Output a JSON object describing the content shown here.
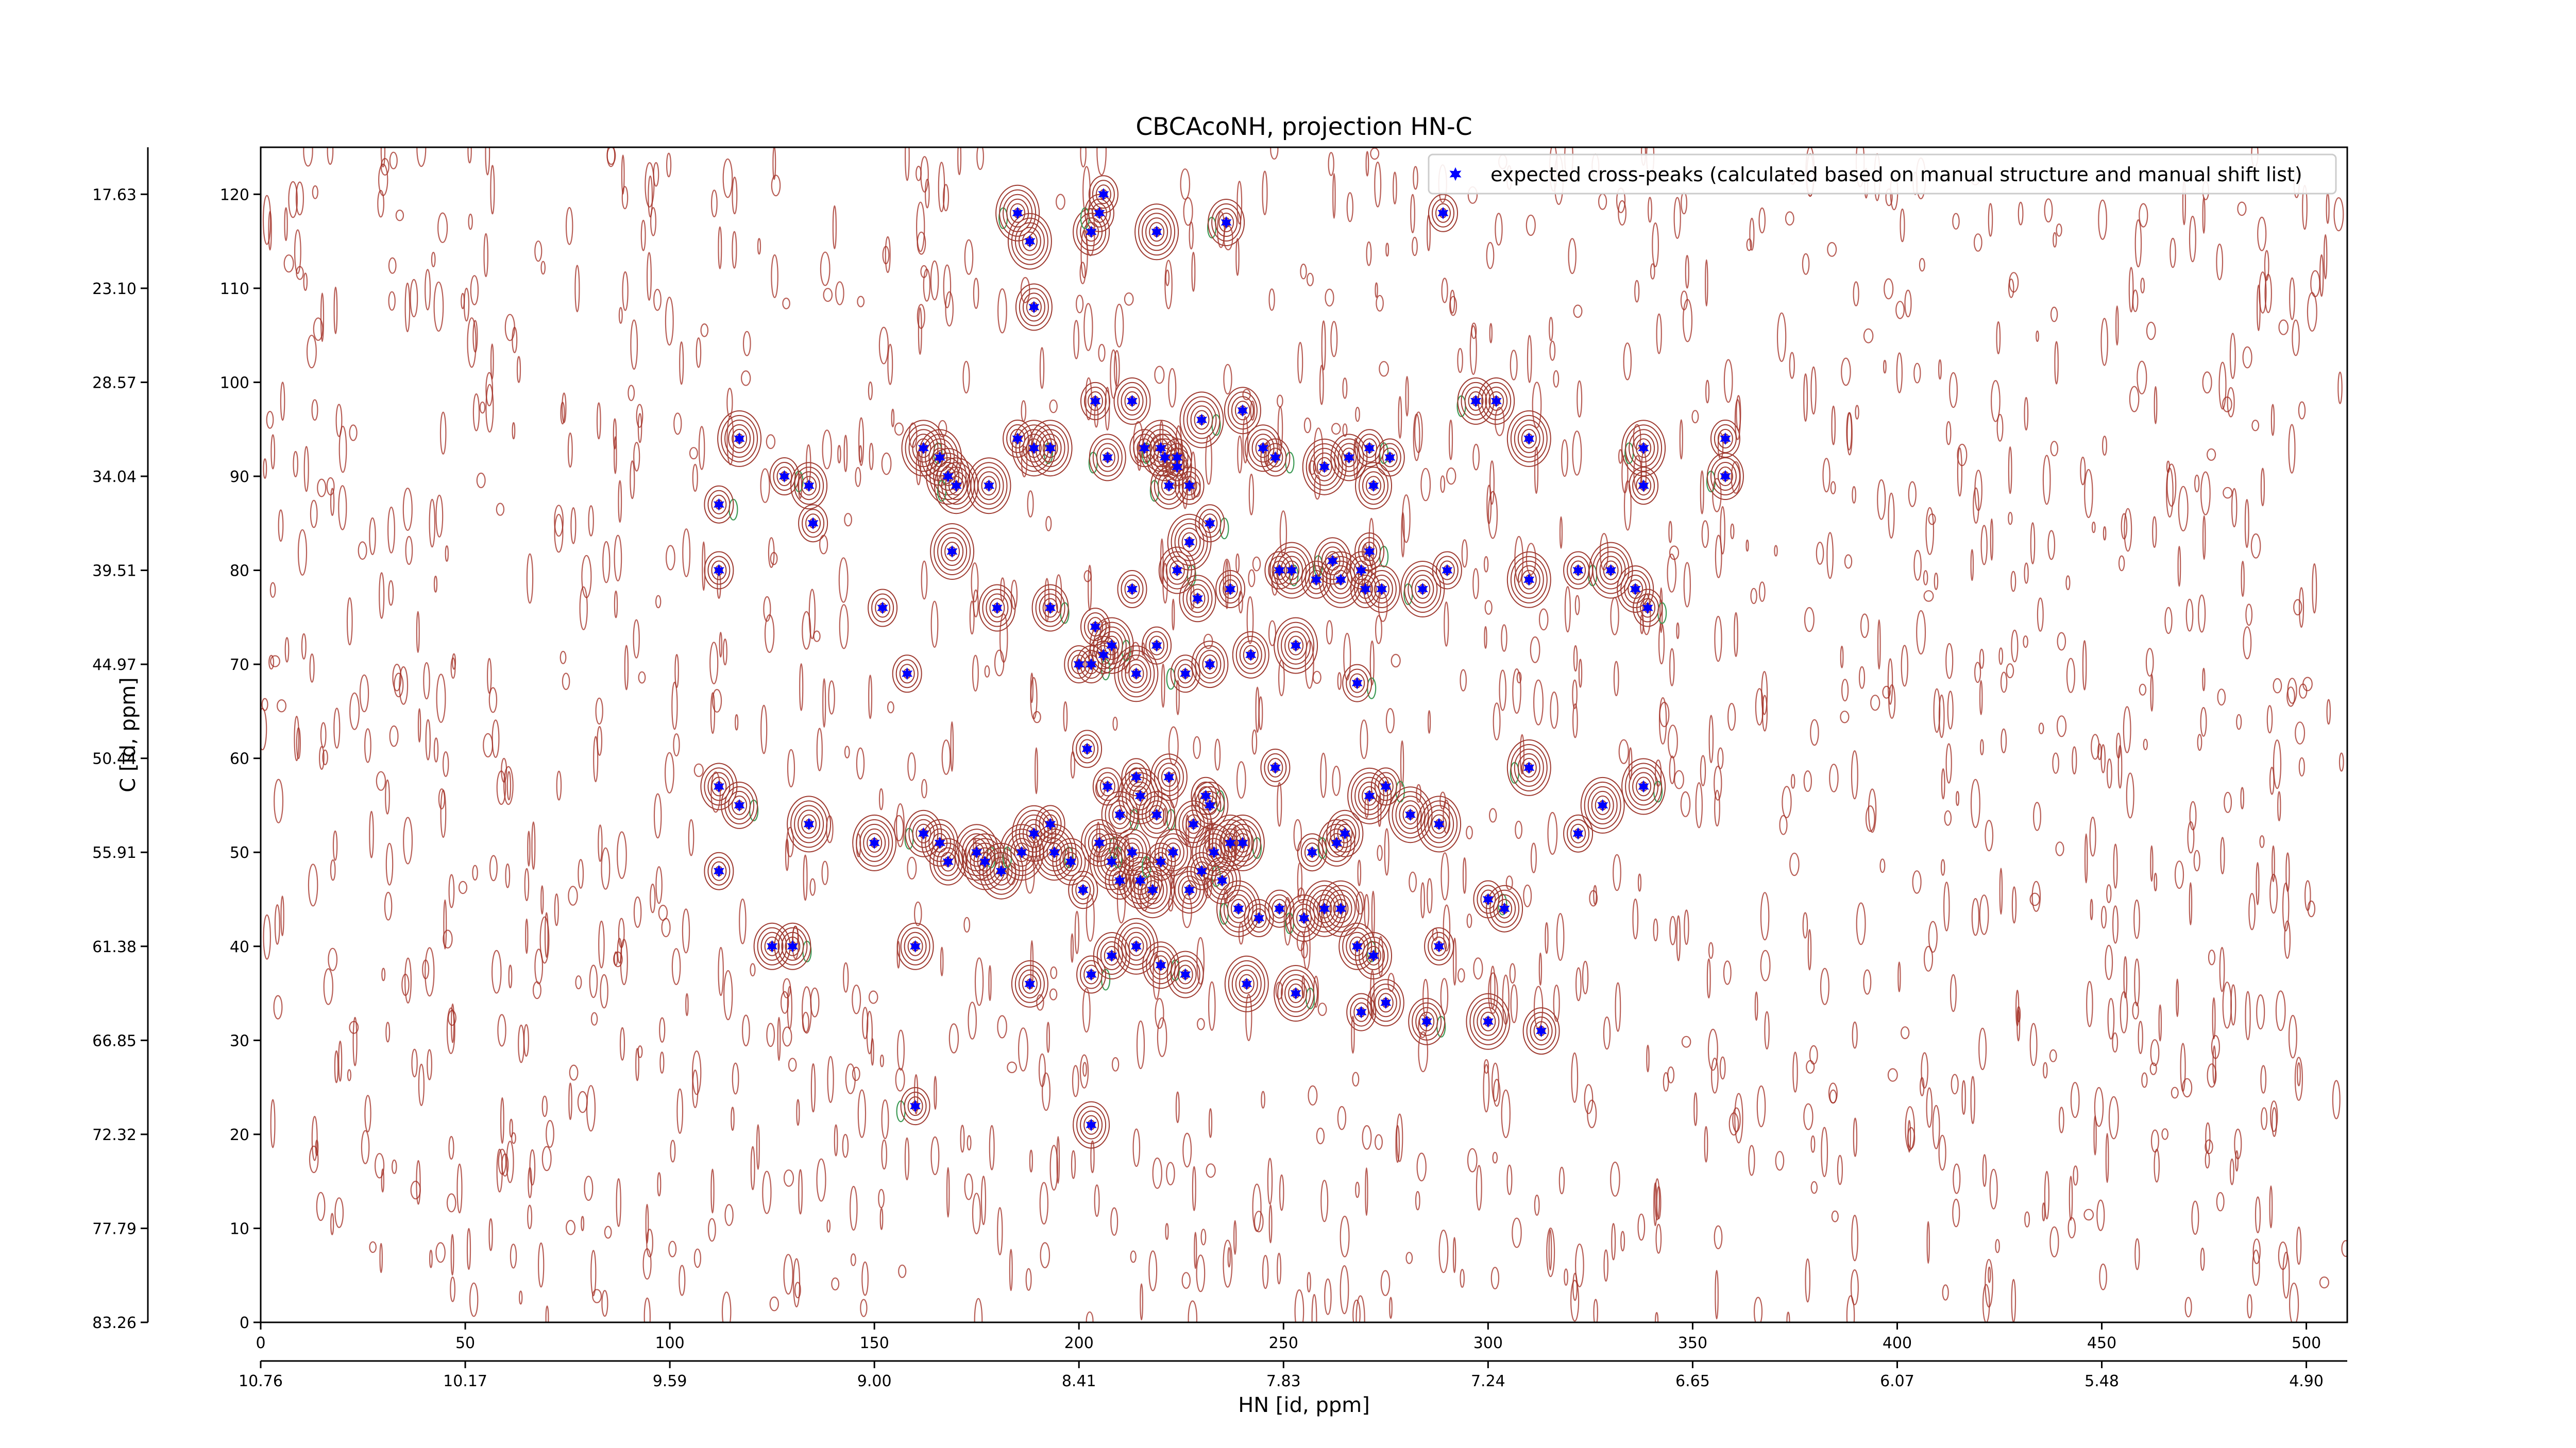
{
  "chart_data": {
    "type": "scatter",
    "title": "CBCAcoNH, projection HN-C",
    "xlabel": "HN [id, ppm]",
    "ylabel": "C [id, ppm]",
    "xlim": [
      0,
      510
    ],
    "ylim": [
      0,
      125
    ],
    "grid": false,
    "legend_position": "top-right",
    "x_ticks_bottom_index": [
      "0",
      "50",
      "100",
      "150",
      "200",
      "250",
      "300",
      "350",
      "400",
      "450",
      "500"
    ],
    "x_ticks_ppm": [
      "10.76",
      "10.17",
      "9.59",
      "9.00",
      "8.41",
      "7.83",
      "7.24",
      "6.65",
      "6.07",
      "5.48",
      "4.90"
    ],
    "y_ticks_right_index": [
      "120",
      "110",
      "100",
      "90",
      "80",
      "70",
      "60",
      "50",
      "40",
      "30",
      "20",
      "10",
      "0"
    ],
    "y_ticks_ppm": [
      "17.63",
      "23.10",
      "28.57",
      "34.04",
      "39.51",
      "44.97",
      "50.44",
      "55.91",
      "61.38",
      "66.85",
      "72.32",
      "77.79",
      "83.26"
    ],
    "series": [
      {
        "name": "expected cross-peaks (calculated based on manual structure and manual shift list)",
        "color": "#0000ff",
        "marker": "star",
        "points": [
          [
            185,
            118
          ],
          [
            188,
            115
          ],
          [
            203,
            116
          ],
          [
            205,
            118
          ],
          [
            206,
            120
          ],
          [
            219,
            116
          ],
          [
            236,
            117
          ],
          [
            289,
            118
          ],
          [
            189,
            108
          ],
          [
            112,
            87
          ],
          [
            112,
            80
          ],
          [
            117,
            94
          ],
          [
            128,
            90
          ],
          [
            134,
            89
          ],
          [
            135,
            85
          ],
          [
            162,
            93
          ],
          [
            166,
            92
          ],
          [
            168,
            90
          ],
          [
            170,
            89
          ],
          [
            178,
            89
          ],
          [
            185,
            94
          ],
          [
            189,
            93
          ],
          [
            193,
            93
          ],
          [
            204,
            98
          ],
          [
            207,
            92
          ],
          [
            213,
            98
          ],
          [
            216,
            93
          ],
          [
            220,
            93
          ],
          [
            221,
            92
          ],
          [
            224,
            92
          ],
          [
            222,
            89
          ],
          [
            224,
            91
          ],
          [
            227,
            89
          ],
          [
            230,
            96
          ],
          [
            240,
            97
          ],
          [
            245,
            93
          ],
          [
            248,
            92
          ],
          [
            260,
            91
          ],
          [
            266,
            92
          ],
          [
            271,
            93
          ],
          [
            272,
            89
          ],
          [
            276,
            92
          ],
          [
            297,
            98
          ],
          [
            302,
            98
          ],
          [
            310,
            94
          ],
          [
            338,
            93
          ],
          [
            338,
            89
          ],
          [
            358,
            94
          ],
          [
            358,
            90
          ],
          [
            169,
            82
          ],
          [
            180,
            76
          ],
          [
            193,
            76
          ],
          [
            200,
            70
          ],
          [
            204,
            74
          ],
          [
            208,
            72
          ],
          [
            213,
            78
          ],
          [
            219,
            72
          ],
          [
            224,
            80
          ],
          [
            227,
            83
          ],
          [
            229,
            77
          ],
          [
            232,
            85
          ],
          [
            237,
            78
          ],
          [
            242,
            71
          ],
          [
            249,
            80
          ],
          [
            252,
            80
          ],
          [
            258,
            79
          ],
          [
            262,
            81
          ],
          [
            264,
            79
          ],
          [
            269,
            80
          ],
          [
            271,
            82
          ],
          [
            270,
            78
          ],
          [
            274,
            78
          ],
          [
            284,
            78
          ],
          [
            290,
            80
          ],
          [
            310,
            79
          ],
          [
            322,
            80
          ],
          [
            330,
            80
          ],
          [
            336,
            78
          ],
          [
            339,
            76
          ],
          [
            152,
            76
          ],
          [
            158,
            69
          ],
          [
            203,
            70
          ],
          [
            206,
            71
          ],
          [
            214,
            69
          ],
          [
            226,
            69
          ],
          [
            232,
            70
          ],
          [
            253,
            72
          ],
          [
            268,
            68
          ],
          [
            202,
            61
          ],
          [
            207,
            57
          ],
          [
            210,
            54
          ],
          [
            214,
            58
          ],
          [
            215,
            56
          ],
          [
            219,
            54
          ],
          [
            222,
            58
          ],
          [
            228,
            53
          ],
          [
            231,
            56
          ],
          [
            232,
            55
          ],
          [
            237,
            51
          ],
          [
            240,
            51
          ],
          [
            248,
            59
          ],
          [
            257,
            50
          ],
          [
            263,
            51
          ],
          [
            265,
            52
          ],
          [
            271,
            56
          ],
          [
            275,
            57
          ],
          [
            281,
            54
          ],
          [
            288,
            53
          ],
          [
            310,
            59
          ],
          [
            322,
            52
          ],
          [
            328,
            55
          ],
          [
            338,
            57
          ],
          [
            112,
            57
          ],
          [
            112,
            48
          ],
          [
            117,
            55
          ],
          [
            134,
            53
          ],
          [
            150,
            51
          ],
          [
            162,
            52
          ],
          [
            166,
            51
          ],
          [
            168,
            49
          ],
          [
            175,
            50
          ],
          [
            177,
            49
          ],
          [
            181,
            48
          ],
          [
            186,
            50
          ],
          [
            189,
            52
          ],
          [
            193,
            53
          ],
          [
            194,
            50
          ],
          [
            198,
            49
          ],
          [
            201,
            46
          ],
          [
            205,
            51
          ],
          [
            208,
            49
          ],
          [
            210,
            47
          ],
          [
            213,
            50
          ],
          [
            215,
            47
          ],
          [
            218,
            46
          ],
          [
            220,
            49
          ],
          [
            223,
            50
          ],
          [
            227,
            46
          ],
          [
            230,
            48
          ],
          [
            233,
            50
          ],
          [
            235,
            47
          ],
          [
            239,
            44
          ],
          [
            244,
            43
          ],
          [
            249,
            44
          ],
          [
            255,
            43
          ],
          [
            260,
            44
          ],
          [
            264,
            44
          ],
          [
            268,
            40
          ],
          [
            272,
            39
          ],
          [
            288,
            40
          ],
          [
            300,
            45
          ],
          [
            304,
            44
          ],
          [
            125,
            40
          ],
          [
            130,
            40
          ],
          [
            160,
            40
          ],
          [
            188,
            36
          ],
          [
            203,
            37
          ],
          [
            208,
            39
          ],
          [
            214,
            40
          ],
          [
            220,
            38
          ],
          [
            226,
            37
          ],
          [
            241,
            36
          ],
          [
            253,
            35
          ],
          [
            269,
            33
          ],
          [
            275,
            34
          ],
          [
            285,
            32
          ],
          [
            300,
            32
          ],
          [
            313,
            31
          ],
          [
            160,
            23
          ],
          [
            203,
            21
          ]
        ]
      }
    ]
  }
}
